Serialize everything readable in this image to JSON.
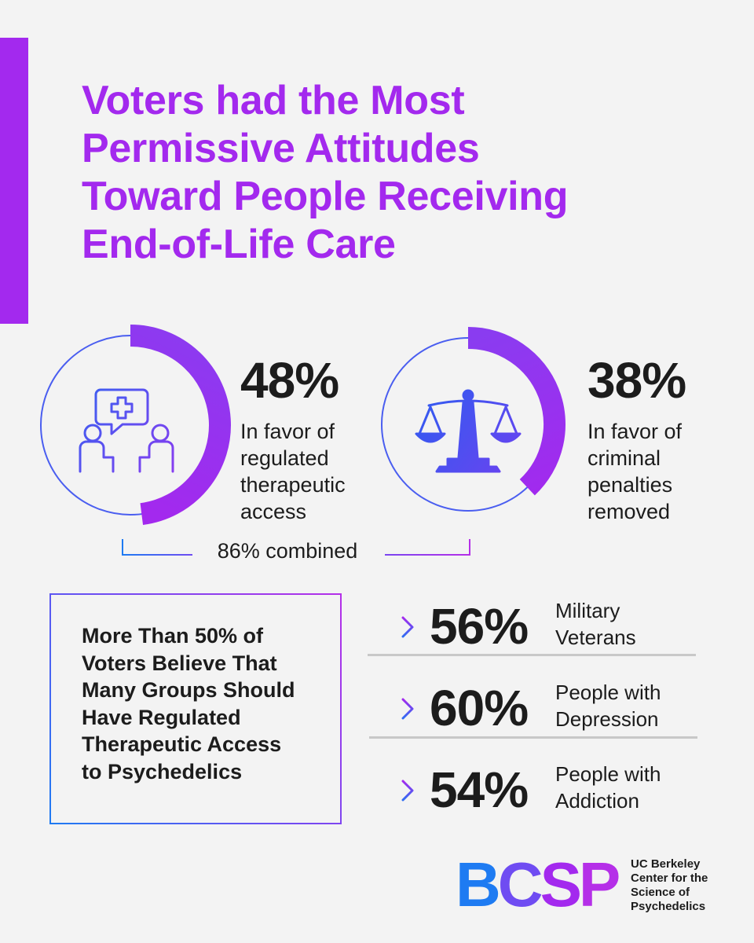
{
  "title_lines": [
    "Voters had the Most",
    "Permissive Attitudes",
    "Toward People Receiving",
    "End-of-Life Care"
  ],
  "chart_data": {
    "type": "donut",
    "stats": [
      {
        "value": 48,
        "label": "48%",
        "desc_lines": [
          "In favor of",
          "regulated",
          "therapeutic",
          "access"
        ],
        "icon": "therapy-session-icon"
      },
      {
        "value": 38,
        "label": "38%",
        "desc_lines": [
          "In favor of",
          "criminal",
          "penalties",
          "removed"
        ],
        "icon": "scales-of-justice-icon"
      }
    ],
    "combined_label": "86% combined",
    "groups": [
      {
        "value": 56,
        "label": "56%",
        "name_lines": [
          "Military",
          "Veterans"
        ]
      },
      {
        "value": 60,
        "label": "60%",
        "name_lines": [
          "People with",
          "Depression"
        ]
      },
      {
        "value": 54,
        "label": "54%",
        "name_lines": [
          "People with",
          "Addiction"
        ]
      }
    ]
  },
  "callout_lines": [
    "More Than 50% of",
    "Voters Believe That",
    "Many Groups Should",
    "Have Regulated",
    "Therapeutic Access",
    "to Psychedelics"
  ],
  "logo": {
    "letters": [
      "B",
      "C",
      "S",
      "P"
    ],
    "org_lines": [
      "UC Berkeley",
      "Center for the",
      "Science of",
      "Psychedelics"
    ]
  },
  "colors": {
    "purple": "#a329ee",
    "blue": "#1e7bf2",
    "violet": "#6f4cf2",
    "text": "#1c1c1c"
  }
}
